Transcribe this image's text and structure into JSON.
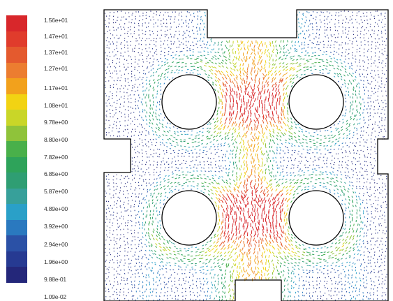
{
  "legend": {
    "labels": [
      "1.56e+01",
      "1.47e+01",
      "1.37e+01",
      "1.27e+01",
      "1.17e+01",
      "1.08e+01",
      "9.78e+00",
      "8.80e+00",
      "7.82e+00",
      "6.85e+00",
      "5.87e+00",
      "4.89e+00",
      "3.92e+00",
      "2.94e+00",
      "1.96e+00",
      "9.88e-01",
      "1.09e-02"
    ],
    "colors": [
      "#d8272b",
      "#e03c2c",
      "#e45a2e",
      "#ec7d30",
      "#f2a11c",
      "#f2d313",
      "#c9d628",
      "#8fc33a",
      "#49b04a",
      "#2ea35a",
      "#2f9e73",
      "#37a09a",
      "#2aa0c8",
      "#2a79bf",
      "#2b51a6",
      "#263a92",
      "#24277a"
    ],
    "min": 0.0109,
    "max": 15.6
  },
  "plot": {
    "cylinders": 4
  }
}
